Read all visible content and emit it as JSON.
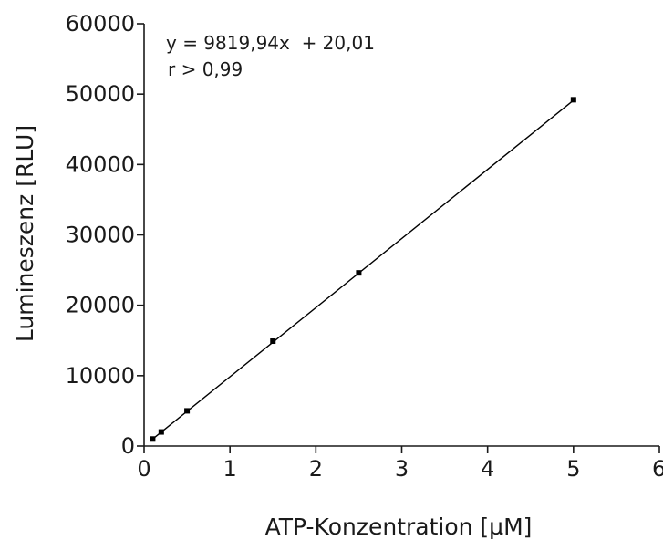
{
  "chart_data": {
    "type": "scatter",
    "xlabel": "ATP-Konzentration [µM]",
    "ylabel": "Lumineszenz [RLU]",
    "xlim": [
      0,
      6
    ],
    "ylim": [
      0,
      60000
    ],
    "x_ticks": [
      "0",
      "1",
      "2",
      "3",
      "4",
      "5",
      "6"
    ],
    "y_ticks": [
      "0",
      "10000",
      "20000",
      "30000",
      "40000",
      "50000",
      "60000"
    ],
    "grid": false,
    "legend": "none",
    "series": [
      {
        "x": [
          0.1,
          0.2,
          0.5,
          1.5,
          2.5,
          5.0
        ],
        "y": [
          1000,
          2000,
          5000,
          14900,
          24600,
          49200
        ]
      }
    ],
    "fit_line": {
      "slope": 9819.94,
      "intercept": 20.01,
      "x_range": [
        0.1,
        5.0
      ]
    },
    "annotations": {
      "equation": "y = 9819,94x  + 20,01",
      "correlation": "r > 0,99"
    },
    "colors": {
      "axis": "#1a1a1a",
      "marker": "#000000",
      "line": "#000000"
    }
  }
}
